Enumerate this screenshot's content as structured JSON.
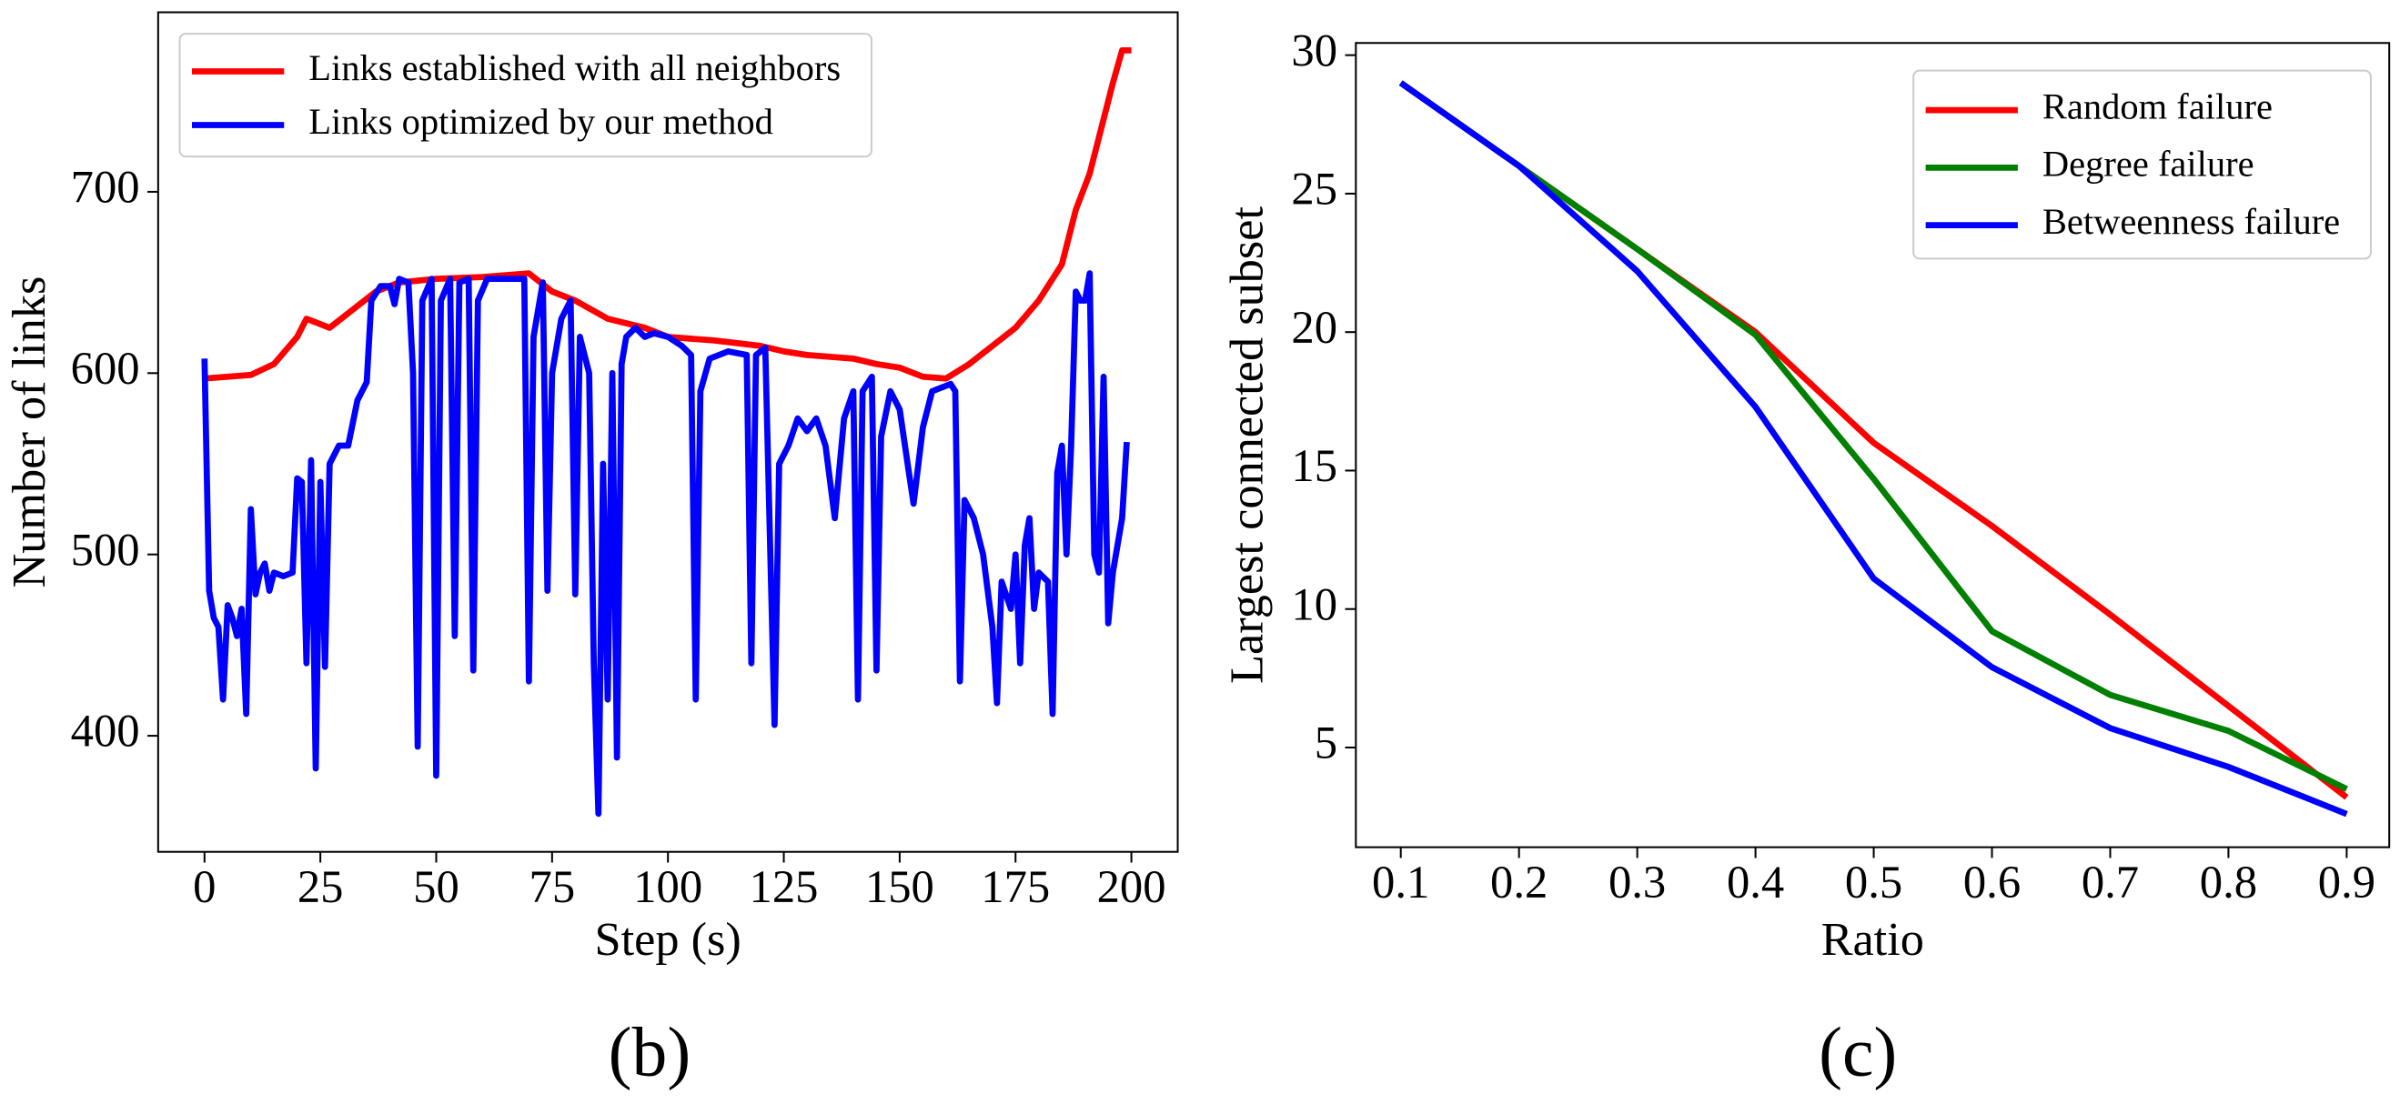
{
  "chart_data": [
    {
      "type": "line",
      "caption": "(b)",
      "xlabel": "Step (s)",
      "ylabel": "Number of links",
      "xlim": [
        -10,
        210
      ],
      "ylim": [
        336,
        799
      ],
      "xticks": [
        0,
        25,
        50,
        75,
        100,
        125,
        150,
        175,
        200
      ],
      "yticks": [
        400,
        500,
        600,
        700
      ],
      "legend": "upper left",
      "series": [
        {
          "name": "Links established with all neighbors",
          "color": "#ff0000",
          "x": [
            0,
            10,
            15,
            20,
            22,
            27,
            32,
            37,
            42,
            50,
            60,
            70,
            75,
            80,
            87,
            95,
            100,
            110,
            120,
            125,
            130,
            140,
            145,
            150,
            155,
            160,
            165,
            170,
            175,
            180,
            185,
            188,
            191,
            194,
            196,
            198,
            200
          ],
          "values": [
            597,
            599,
            605,
            620,
            630,
            625,
            635,
            645,
            650,
            652,
            653,
            655,
            645,
            640,
            630,
            625,
            620,
            618,
            615,
            612,
            610,
            608,
            605,
            603,
            598,
            597,
            605,
            615,
            625,
            640,
            660,
            690,
            710,
            740,
            760,
            778,
            778
          ]
        },
        {
          "name": "Links optimized by our method",
          "color": "#0000ff",
          "x": [
            0,
            1,
            2,
            3,
            4,
            5,
            6,
            7,
            8,
            9,
            10,
            11,
            12,
            13,
            14,
            15,
            17,
            19,
            20,
            21,
            22,
            23,
            24,
            25,
            26,
            27,
            29,
            31,
            33,
            35,
            36,
            38,
            40,
            41,
            42,
            44,
            45,
            46,
            47,
            49,
            50,
            51,
            53,
            54,
            55,
            57,
            58,
            59,
            61,
            65,
            69,
            70,
            71,
            73,
            74,
            75,
            77,
            79,
            80,
            81,
            83,
            84,
            85,
            86,
            87,
            88,
            89,
            90,
            91,
            93,
            95,
            97,
            100,
            103,
            105,
            106,
            107,
            109,
            113,
            117,
            118,
            119,
            121,
            122,
            123,
            124,
            126,
            128,
            130,
            132,
            134,
            136,
            138,
            140,
            141,
            142,
            144,
            145,
            146,
            148,
            150,
            152,
            153,
            155,
            157,
            159,
            161,
            162,
            163,
            164,
            166,
            168,
            170,
            171,
            172,
            174,
            175,
            176,
            177,
            178,
            179,
            180,
            182,
            183,
            184,
            185,
            186,
            187,
            188,
            189,
            190,
            191,
            192,
            193,
            194,
            195,
            196,
            198,
            199
          ],
          "values": [
            608,
            480,
            465,
            460,
            420,
            472,
            465,
            455,
            470,
            412,
            525,
            478,
            490,
            495,
            480,
            490,
            488,
            490,
            542,
            540,
            440,
            552,
            382,
            540,
            438,
            550,
            560,
            560,
            585,
            595,
            640,
            648,
            648,
            638,
            652,
            650,
            600,
            394,
            640,
            652,
            378,
            640,
            652,
            455,
            650,
            652,
            436,
            640,
            652,
            652,
            652,
            430,
            620,
            650,
            480,
            600,
            630,
            640,
            478,
            620,
            600,
            440,
            357,
            550,
            420,
            600,
            388,
            605,
            620,
            625,
            620,
            622,
            620,
            615,
            610,
            420,
            590,
            608,
            612,
            610,
            440,
            610,
            614,
            510,
            406,
            550,
            560,
            575,
            568,
            575,
            560,
            520,
            575,
            590,
            420,
            590,
            598,
            436,
            565,
            590,
            580,
            545,
            528,
            570,
            590,
            592,
            594,
            590,
            430,
            530,
            520,
            500,
            460,
            418,
            485,
            470,
            500,
            440,
            505,
            520,
            470,
            490,
            485,
            412,
            545,
            560,
            500,
            560,
            645,
            640,
            640,
            655,
            500,
            490,
            598,
            462,
            490,
            520,
            562
          ]
        }
      ]
    },
    {
      "type": "line",
      "caption": "(c)",
      "xlabel": "Ratio",
      "ylabel": "Largest connected subset",
      "xlim": [
        0.062,
        0.936
      ],
      "ylim": [
        1.4,
        30.44
      ],
      "xticks": [
        0.1,
        0.2,
        0.3,
        0.4,
        0.5,
        0.6,
        0.7,
        0.8,
        0.9
      ],
      "yticks": [
        5,
        10,
        15,
        20,
        25,
        30
      ],
      "legend": "upper right",
      "series": [
        {
          "name": "Random failure",
          "color": "#ff0000",
          "x": [
            0.1,
            0.2,
            0.3,
            0.4,
            0.5,
            0.6,
            0.7,
            0.8,
            0.9
          ],
          "values": [
            29,
            26,
            23,
            20,
            16,
            13,
            9.8,
            6.5,
            3.2
          ]
        },
        {
          "name": "Degree failure",
          "color": "#008000",
          "x": [
            0.1,
            0.2,
            0.3,
            0.4,
            0.5,
            0.6,
            0.7,
            0.8,
            0.9
          ],
          "values": [
            29,
            26,
            23,
            19.9,
            14.7,
            9.2,
            6.9,
            5.6,
            3.5
          ]
        },
        {
          "name": "Betweenness failure",
          "color": "#0000ff",
          "x": [
            0.1,
            0.2,
            0.3,
            0.4,
            0.5,
            0.6,
            0.7,
            0.8,
            0.9
          ],
          "values": [
            29,
            26,
            22.2,
            17.3,
            11.1,
            7.9,
            5.7,
            4.3,
            2.6
          ]
        }
      ]
    }
  ]
}
